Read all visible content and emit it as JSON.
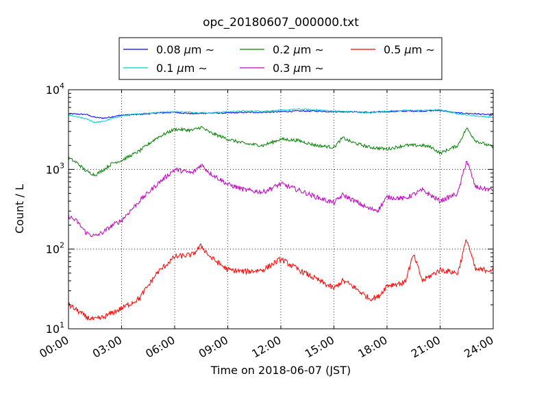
{
  "chart_data": {
    "type": "line",
    "title": "opc_20180607_000000.txt",
    "xlabel": "Time on 2018-06-07 (JST)",
    "ylabel": "Count / L",
    "x_unit": "hours (JST)",
    "xlim": [
      0,
      24
    ],
    "ylim": [
      10,
      10000
    ],
    "yscale": "log",
    "grid": true,
    "legend_position": "top-center (above plot)",
    "x_ticks": [
      {
        "value": 0,
        "label": "00:00"
      },
      {
        "value": 3,
        "label": "03:00"
      },
      {
        "value": 6,
        "label": "06:00"
      },
      {
        "value": 9,
        "label": "09:00"
      },
      {
        "value": 12,
        "label": "12:00"
      },
      {
        "value": 15,
        "label": "15:00"
      },
      {
        "value": 18,
        "label": "18:00"
      },
      {
        "value": 21,
        "label": "21:00"
      },
      {
        "value": 24,
        "label": "24:00"
      }
    ],
    "y_ticks": [
      {
        "value": 10,
        "base": "10",
        "exp": "1"
      },
      {
        "value": 100,
        "base": "10",
        "exp": "2"
      },
      {
        "value": 1000,
        "base": "10",
        "exp": "3"
      },
      {
        "value": 10000,
        "base": "10",
        "exp": "4"
      }
    ],
    "series": [
      {
        "name": "0.08",
        "color": "#0000ff",
        "points": [
          [
            0,
            5000
          ],
          [
            1,
            4900
          ],
          [
            1.5,
            4500
          ],
          [
            2,
            4400
          ],
          [
            2.5,
            4600
          ],
          [
            3,
            4800
          ],
          [
            4,
            4900
          ],
          [
            5,
            5100
          ],
          [
            6,
            5200
          ],
          [
            7,
            5000
          ],
          [
            8,
            5100
          ],
          [
            9,
            5100
          ],
          [
            10,
            5200
          ],
          [
            11,
            5200
          ],
          [
            12,
            5300
          ],
          [
            13,
            5400
          ],
          [
            14,
            5400
          ],
          [
            15,
            5300
          ],
          [
            16,
            5300
          ],
          [
            17,
            5200
          ],
          [
            18,
            5300
          ],
          [
            19,
            5400
          ],
          [
            20,
            5400
          ],
          [
            21,
            5500
          ],
          [
            22,
            5100
          ],
          [
            23,
            5000
          ],
          [
            24,
            4800
          ]
        ]
      },
      {
        "name": "0.1",
        "color": "#00cccc",
        "points": [
          [
            0,
            4800
          ],
          [
            1,
            4300
          ],
          [
            1.5,
            3900
          ],
          [
            2,
            4000
          ],
          [
            2.5,
            4400
          ],
          [
            3,
            4700
          ],
          [
            4,
            5000
          ],
          [
            5,
            5200
          ],
          [
            6,
            5300
          ],
          [
            7,
            5200
          ],
          [
            8,
            5100
          ],
          [
            9,
            5300
          ],
          [
            10,
            5400
          ],
          [
            11,
            5400
          ],
          [
            12,
            5500
          ],
          [
            13,
            5700
          ],
          [
            14,
            5600
          ],
          [
            15,
            5400
          ],
          [
            16,
            5300
          ],
          [
            17,
            5100
          ],
          [
            18,
            5400
          ],
          [
            19,
            5500
          ],
          [
            20,
            5500
          ],
          [
            21,
            5600
          ],
          [
            22,
            5000
          ],
          [
            23,
            4700
          ],
          [
            24,
            4500
          ]
        ]
      },
      {
        "name": "0.2",
        "color": "#008000",
        "points": [
          [
            0,
            1400
          ],
          [
            0.5,
            1200
          ],
          [
            1,
            950
          ],
          [
            1.5,
            850
          ],
          [
            2,
            1000
          ],
          [
            2.5,
            1200
          ],
          [
            3,
            1300
          ],
          [
            4,
            1700
          ],
          [
            5,
            2500
          ],
          [
            6,
            3200
          ],
          [
            7,
            3100
          ],
          [
            7.5,
            3400
          ],
          [
            8,
            2900
          ],
          [
            9,
            2400
          ],
          [
            10,
            2100
          ],
          [
            11,
            2000
          ],
          [
            12,
            2400
          ],
          [
            13,
            2300
          ],
          [
            14,
            2000
          ],
          [
            15,
            1900
          ],
          [
            15.5,
            2500
          ],
          [
            16,
            2200
          ],
          [
            17,
            1900
          ],
          [
            18,
            1800
          ],
          [
            19,
            2000
          ],
          [
            20,
            2000
          ],
          [
            20.5,
            1900
          ],
          [
            21,
            1600
          ],
          [
            22,
            2000
          ],
          [
            22.5,
            3300
          ],
          [
            23,
            2300
          ],
          [
            24,
            1900
          ]
        ]
      },
      {
        "name": "0.3",
        "color": "#bf00bf",
        "points": [
          [
            0,
            260
          ],
          [
            0.5,
            220
          ],
          [
            1,
            160
          ],
          [
            1.5,
            145
          ],
          [
            2,
            165
          ],
          [
            2.5,
            200
          ],
          [
            3,
            230
          ],
          [
            4,
            400
          ],
          [
            5,
            650
          ],
          [
            6,
            1000
          ],
          [
            7,
            900
          ],
          [
            7.5,
            1150
          ],
          [
            8,
            900
          ],
          [
            9,
            650
          ],
          [
            10,
            550
          ],
          [
            11,
            520
          ],
          [
            12,
            660
          ],
          [
            13,
            550
          ],
          [
            14,
            450
          ],
          [
            15,
            380
          ],
          [
            15.5,
            480
          ],
          [
            16,
            420
          ],
          [
            17,
            320
          ],
          [
            17.5,
            310
          ],
          [
            18,
            450
          ],
          [
            19,
            430
          ],
          [
            20,
            550
          ],
          [
            21,
            400
          ],
          [
            22,
            500
          ],
          [
            22.5,
            1300
          ],
          [
            23,
            600
          ],
          [
            24,
            550
          ]
        ]
      },
      {
        "name": "0.5",
        "color": "#ff0000",
        "points": [
          [
            0,
            20
          ],
          [
            0.5,
            17
          ],
          [
            1,
            14
          ],
          [
            1.5,
            13
          ],
          [
            2,
            14
          ],
          [
            2.5,
            16
          ],
          [
            3,
            18
          ],
          [
            4,
            24
          ],
          [
            5,
            50
          ],
          [
            6,
            80
          ],
          [
            7,
            85
          ],
          [
            7.5,
            110
          ],
          [
            8,
            80
          ],
          [
            9,
            55
          ],
          [
            10,
            52
          ],
          [
            11,
            55
          ],
          [
            12,
            75
          ],
          [
            13,
            55
          ],
          [
            14,
            42
          ],
          [
            15,
            32
          ],
          [
            15.5,
            40
          ],
          [
            16,
            35
          ],
          [
            17,
            24
          ],
          [
            17.5,
            25
          ],
          [
            18,
            35
          ],
          [
            19,
            38
          ],
          [
            19.5,
            85
          ],
          [
            20,
            40
          ],
          [
            21,
            55
          ],
          [
            22,
            50
          ],
          [
            22.5,
            135
          ],
          [
            23,
            55
          ],
          [
            24,
            55
          ]
        ]
      }
    ]
  }
}
